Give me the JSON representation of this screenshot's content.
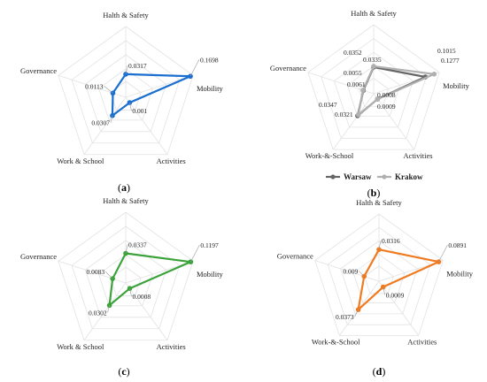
{
  "chart_data": [
    {
      "type": "radar",
      "panel_label": "a",
      "axes": [
        "Halth & Safety",
        "Mobility",
        "Activities",
        "Work & School",
        "Governance"
      ],
      "series": [
        {
          "values": [
            0.0317,
            0.1698,
            0.001,
            0.0307,
            0.0113
          ],
          "color": "#1a6fd0"
        }
      ],
      "value_labels": [
        "0.0317",
        "0.1698",
        "0.001",
        "0.0307",
        "0.0113"
      ]
    },
    {
      "type": "radar",
      "panel_label": "b",
      "axes": [
        "Halth & Safety",
        "Mobility",
        "Activities",
        "Work-&-School",
        "Governance"
      ],
      "series": [
        {
          "name": "Warsaw",
          "values": [
            0.0335,
            0.1015,
            0.0008,
            0.0347,
            0.0055
          ],
          "color": "#666666"
        },
        {
          "name": "Krakow",
          "values": [
            0.0352,
            0.1277,
            0.0009,
            0.0321,
            0.0061
          ],
          "color": "#b0b0b0"
        }
      ],
      "value_labels": [
        "0.0352",
        "0.0335",
        "0.1015",
        "0.1277",
        "0.0055",
        "0.0061",
        "0.0008",
        "0.0009",
        "0.0347",
        "0.0321"
      ],
      "legend": [
        "Warsaw",
        "Krakow"
      ]
    },
    {
      "type": "radar",
      "panel_label": "c",
      "axes": [
        "Halth & Safety",
        "Mobility",
        "Activities",
        "Work & School",
        "Governance"
      ],
      "series": [
        {
          "values": [
            0.0337,
            0.1197,
            0.0008,
            0.0302,
            0.0083
          ],
          "color": "#3ca33a"
        }
      ],
      "value_labels": [
        "0.0337",
        "0.1197",
        "0.0008",
        "0.0302",
        "0.0083"
      ]
    },
    {
      "type": "radar",
      "panel_label": "d",
      "axes": [
        "Halth & Safety",
        "Mobility",
        "Activities",
        "Work-&-School",
        "Governance"
      ],
      "series": [
        {
          "values": [
            0.0316,
            0.0891,
            0.0009,
            0.0373,
            0.009
          ],
          "color": "#f07a20"
        }
      ],
      "value_labels": [
        "0.0316",
        "0.0891",
        "0.0009",
        "0.0373",
        "0.009"
      ]
    }
  ]
}
